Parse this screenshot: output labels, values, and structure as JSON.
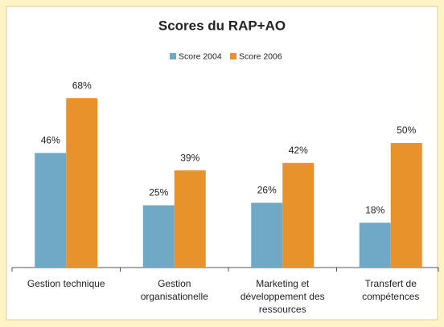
{
  "chart_data": {
    "type": "bar",
    "title": "Scores du RAP+AO",
    "categories": [
      [
        "Gestion technique"
      ],
      [
        "Gestion",
        "organisationelle"
      ],
      [
        "Marketing et",
        "développement des",
        "ressources"
      ],
      [
        "Transfert de",
        "compétences"
      ]
    ],
    "series": [
      {
        "name": "Score 2004",
        "color": "#6fa9c6",
        "values": [
          46,
          25,
          26,
          18
        ],
        "value_labels": [
          "46%",
          "25%",
          "26%",
          "18%"
        ]
      },
      {
        "name": "Score  2006",
        "color": "#e8922c",
        "values": [
          68,
          39,
          42,
          50
        ],
        "value_labels": [
          "68%",
          "39%",
          "42%",
          "50%"
        ]
      }
    ],
    "ylim": [
      0,
      100
    ],
    "legend": "top"
  }
}
